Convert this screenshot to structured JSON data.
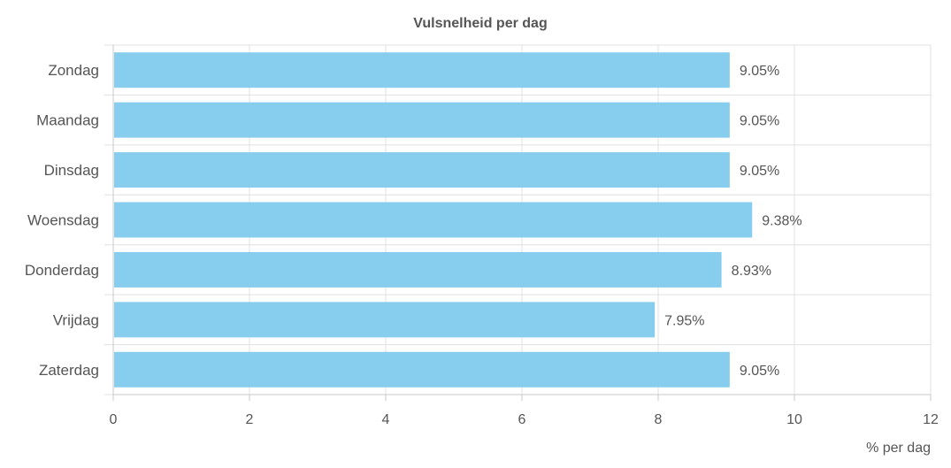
{
  "chart_data": {
    "type": "bar",
    "orientation": "horizontal",
    "title": "Vulsnelheid per dag",
    "xlabel": "% per dag",
    "ylabel": "",
    "categories": [
      "Zondag",
      "Maandag",
      "Dinsdag",
      "Woensdag",
      "Donderdag",
      "Vrijdag",
      "Zaterdag"
    ],
    "values": [
      9.05,
      9.05,
      9.05,
      9.38,
      8.93,
      7.95,
      9.05
    ],
    "value_labels": [
      "9.05%",
      "9.05%",
      "9.05%",
      "9.38%",
      "8.93%",
      "7.95%",
      "9.05%"
    ],
    "xlim": [
      0,
      12
    ],
    "xticks": [
      "0",
      "2",
      "4",
      "6",
      "8",
      "10",
      "12"
    ],
    "grid": true,
    "legend": "none",
    "colors": {
      "bar": "#87cdee",
      "grid": "#e0e0e0",
      "axis": "#c8c8c8",
      "text": "#555555",
      "title": "#555555"
    }
  }
}
